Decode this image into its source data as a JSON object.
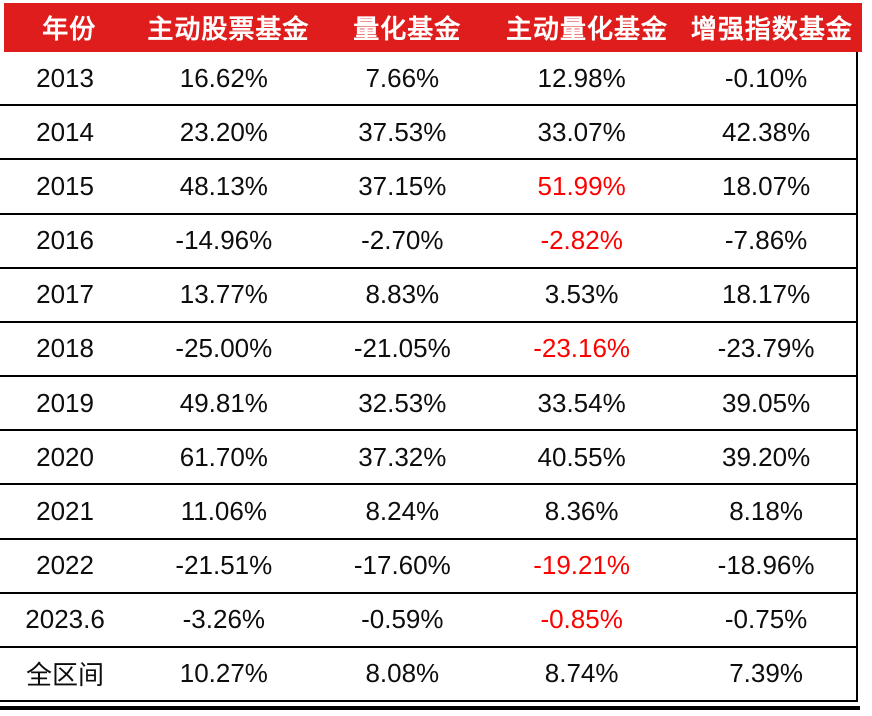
{
  "table": {
    "columns": [
      "年份",
      "主动股票基金",
      "量化基金",
      "主动量化基金",
      "增强指数基金"
    ],
    "rows": [
      {
        "year": "2013",
        "values": [
          "16.62%",
          "7.66%",
          "12.98%",
          "-0.10%"
        ],
        "red_indices": []
      },
      {
        "year": "2014",
        "values": [
          "23.20%",
          "37.53%",
          "33.07%",
          "42.38%"
        ],
        "red_indices": []
      },
      {
        "year": "2015",
        "values": [
          "48.13%",
          "37.15%",
          "51.99%",
          "18.07%"
        ],
        "red_indices": [
          2
        ]
      },
      {
        "year": "2016",
        "values": [
          "-14.96%",
          "-2.70%",
          "-2.82%",
          "-7.86%"
        ],
        "red_indices": [
          2
        ]
      },
      {
        "year": "2017",
        "values": [
          "13.77%",
          "8.83%",
          "3.53%",
          "18.17%"
        ],
        "red_indices": []
      },
      {
        "year": "2018",
        "values": [
          "-25.00%",
          "-21.05%",
          "-23.16%",
          "-23.79%"
        ],
        "red_indices": [
          2
        ]
      },
      {
        "year": "2019",
        "values": [
          "49.81%",
          "32.53%",
          "33.54%",
          "39.05%"
        ],
        "red_indices": []
      },
      {
        "year": "2020",
        "values": [
          "61.70%",
          "37.32%",
          "40.55%",
          "39.20%"
        ],
        "red_indices": []
      },
      {
        "year": "2021",
        "values": [
          "11.06%",
          "8.24%",
          "8.36%",
          "8.18%"
        ],
        "red_indices": []
      },
      {
        "year": "2022",
        "values": [
          "-21.51%",
          "-17.60%",
          "-19.21%",
          "-18.96%"
        ],
        "red_indices": [
          2
        ]
      },
      {
        "year": "2023.6",
        "values": [
          "-3.26%",
          "-0.59%",
          "-0.85%",
          "-0.75%"
        ],
        "red_indices": [
          2
        ]
      },
      {
        "year": "全区间",
        "values": [
          "10.27%",
          "8.08%",
          "8.74%",
          "7.39%"
        ],
        "red_indices": []
      }
    ]
  },
  "colors": {
    "header_background": "#e01d1d",
    "header_text": "#ffffff",
    "highlight_value": "#fe0000",
    "body_text": "#0d0d0d",
    "rule": "#000000"
  },
  "chart_data": {
    "type": "table",
    "title": "",
    "columns": [
      "年份",
      "主动股票基金",
      "量化基金",
      "主动量化基金",
      "增强指数基金"
    ],
    "categories": [
      "2013",
      "2014",
      "2015",
      "2016",
      "2017",
      "2018",
      "2019",
      "2020",
      "2021",
      "2022",
      "2023.6",
      "全区间"
    ],
    "series": [
      {
        "name": "主动股票基金",
        "values_pct": [
          16.62,
          23.2,
          48.13,
          -14.96,
          13.77,
          -25.0,
          49.81,
          61.7,
          11.06,
          -21.51,
          -3.26,
          10.27
        ]
      },
      {
        "name": "量化基金",
        "values_pct": [
          7.66,
          37.53,
          37.15,
          -2.7,
          8.83,
          -21.05,
          32.53,
          37.32,
          8.24,
          -17.6,
          -0.59,
          8.08
        ]
      },
      {
        "name": "主动量化基金",
        "values_pct": [
          12.98,
          33.07,
          51.99,
          -2.82,
          3.53,
          -23.16,
          33.54,
          40.55,
          8.36,
          -19.21,
          -0.85,
          8.74
        ]
      },
      {
        "name": "增强指数基金",
        "values_pct": [
          -0.1,
          42.38,
          18.07,
          -7.86,
          18.17,
          -23.79,
          39.05,
          39.2,
          8.18,
          -18.96,
          -0.75,
          7.39
        ]
      }
    ],
    "highlighted_red_cells": [
      {
        "year": "2015",
        "column": "主动量化基金",
        "value": "51.99%"
      },
      {
        "year": "2016",
        "column": "主动量化基金",
        "value": "-2.82%"
      },
      {
        "year": "2018",
        "column": "主动量化基金",
        "value": "-23.16%"
      },
      {
        "year": "2022",
        "column": "主动量化基金",
        "value": "-19.21%"
      },
      {
        "year": "2023.6",
        "column": "主动量化基金",
        "value": "-0.85%"
      }
    ],
    "layout": {
      "header_style": "red band, white bold text",
      "row_dividers": "horizontal black rules between rows",
      "bottom_border": "double black rule",
      "right_border": "thin black vertical rule"
    }
  }
}
